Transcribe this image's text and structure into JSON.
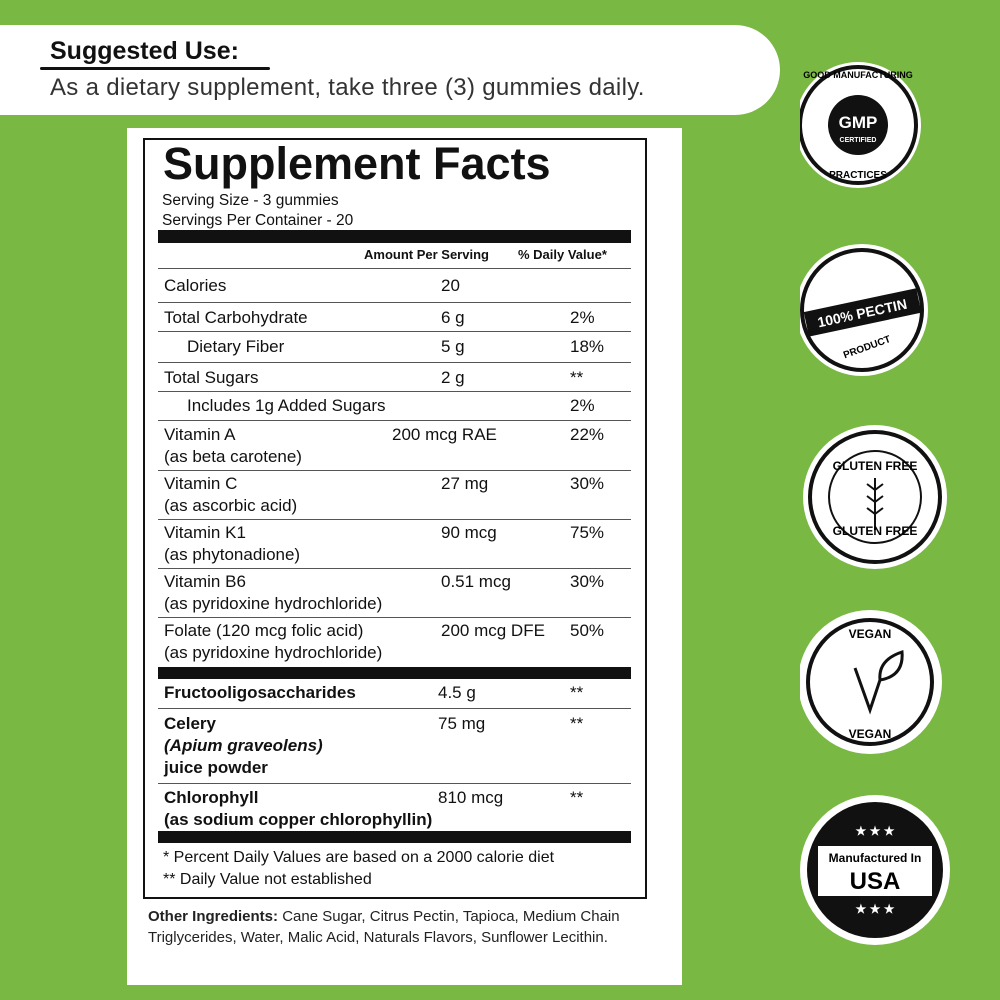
{
  "suggested_use": {
    "heading": "Suggested Use:",
    "text": "As a dietary supplement, take three (3) gummies daily."
  },
  "facts": {
    "title": "Supplement Facts",
    "serving_size": "Serving Size - 3 gummies",
    "servings_per_container": "Servings Per Container - 20",
    "header": {
      "amount": "Amount Per Serving",
      "daily_value": "% Daily Value*"
    },
    "rows": [
      {
        "lines": [
          "Calories"
        ],
        "amount": "20"
      },
      {
        "lines": [
          "Total Carbohydrate"
        ],
        "amount": "6 g",
        "dv": "2%"
      },
      {
        "lines": [
          "Dietary Fiber"
        ],
        "amount": "5 g",
        "dv": "18%"
      },
      {
        "lines": [
          "Total Sugars"
        ],
        "amount": "2 g",
        "dv": "**"
      },
      {
        "lines": [
          "Includes 1g Added Sugars"
        ],
        "dv": "2%"
      },
      {
        "lines": [
          "Vitamin A",
          "(as beta carotene)"
        ],
        "amount": "200 mcg RAE",
        "dv": "22%"
      },
      {
        "lines": [
          "Vitamin C",
          "(as ascorbic acid)"
        ],
        "amount": "27 mg",
        "dv": "30%"
      },
      {
        "lines": [
          "Vitamin K1",
          "(as phytonadione)"
        ],
        "amount": "90 mcg",
        "dv": "75%"
      },
      {
        "lines": [
          "Vitamin B6",
          "(as pyridoxine hydrochloride)"
        ],
        "amount": "0.51 mcg",
        "dv": "30%"
      },
      {
        "lines": [
          "Folate (120 mcg folic acid)",
          "(as pyridoxine hydrochloride)"
        ],
        "amount": "200 mcg DFE",
        "dv": "50%"
      },
      {
        "lines": [
          "Fructooligosaccharides"
        ],
        "amount": "4.5 g",
        "dv": "**"
      },
      {
        "lines": [
          "Celery",
          "(Apium graveolens)",
          "juice powder"
        ],
        "amount": "75 mg",
        "dv": "**"
      },
      {
        "lines": [
          "Chlorophyll",
          "(as sodium copper chlorophyllin)"
        ],
        "amount": "810 mcg",
        "dv": "**"
      }
    ],
    "footnotes": [
      "* Percent Daily Values are based on a 2000 calorie diet",
      "** Daily Value not established"
    ]
  },
  "other_ingredients": {
    "label": "Other Ingredients:",
    "text": "Cane Sugar, Citrus Pectin, Tapioca, Medium Chain Triglycerides, Water, Malic Acid, Naturals Flavors, Sunflower Lecithin."
  },
  "badges": {
    "gmp": {
      "top": "GOOD MANUFACTURING",
      "center": "GMP",
      "sub": "CERTIFIED",
      "bottom": "PRACTICES"
    },
    "pectin": {
      "main": "100% PECTIN",
      "sub": "PRODUCT"
    },
    "gluten": {
      "top": "GLUTEN FREE",
      "bottom": "GLUTEN FREE"
    },
    "vegan": {
      "top": "VEGAN",
      "bottom": "VEGAN"
    },
    "usa": {
      "top": "Manufactured In",
      "main": "USA"
    }
  }
}
